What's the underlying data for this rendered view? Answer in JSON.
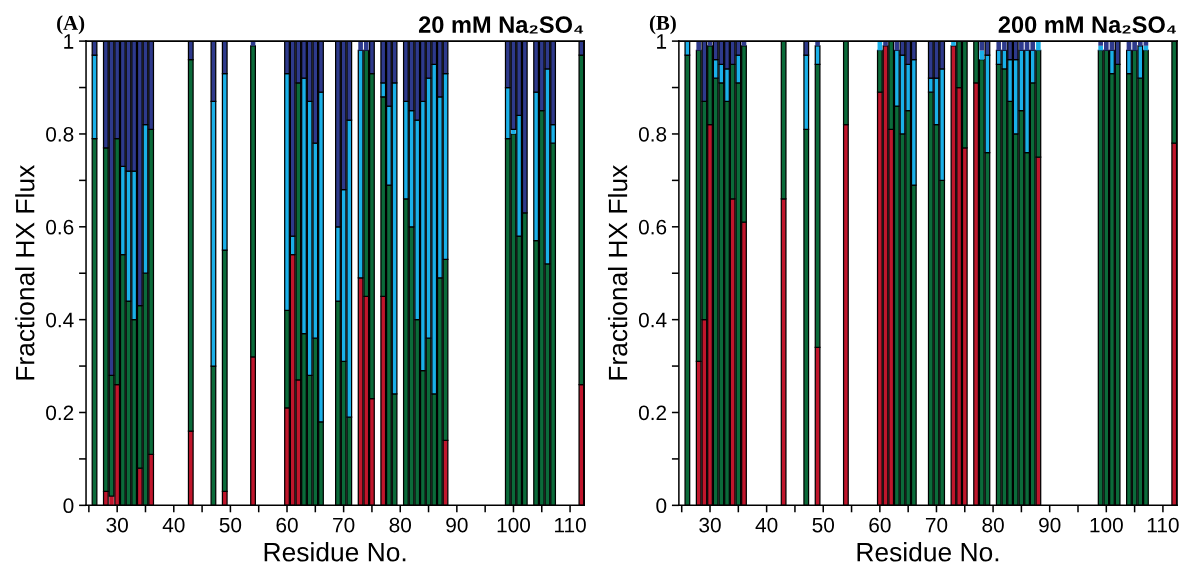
{
  "chart_data": [
    {
      "type": "bar",
      "stacked": true,
      "title": "20 mM Na₂SO₄",
      "annotations": [
        "(A)"
      ],
      "xlabel": "Residue No.",
      "ylabel": "Fractional HX Flux",
      "x": [
        26,
        28,
        29,
        30,
        31,
        32,
        33,
        34,
        35,
        36,
        43,
        47,
        49,
        54,
        60,
        61,
        62,
        63,
        64,
        65,
        66,
        69,
        70,
        71,
        73,
        74,
        75,
        77,
        78,
        79,
        81,
        82,
        83,
        84,
        85,
        86,
        87,
        88,
        99,
        100,
        101,
        102,
        104,
        105,
        106,
        107,
        112
      ],
      "series": [
        {
          "color": "#c0162c",
          "values": [
            0,
            0.03,
            0.02,
            0.26,
            0,
            0,
            0,
            0.08,
            0,
            0.11,
            0.16,
            0,
            0.03,
            0.32,
            0.21,
            0.54,
            0.27,
            0,
            0,
            0,
            0,
            0,
            0,
            0,
            0.49,
            0.45,
            0.23,
            0.45,
            0,
            0,
            0,
            0,
            0,
            0,
            0,
            0,
            0,
            0.14,
            0,
            0,
            0,
            0,
            0,
            0,
            0,
            0,
            0.26
          ]
        },
        {
          "color": "#0b6b3a",
          "values": [
            0.79,
            0.74,
            0.26,
            0.53,
            0.54,
            0.44,
            0.4,
            0.35,
            0.5,
            0.7,
            0.8,
            0.3,
            0.52,
            0.67,
            0.21,
            0,
            0.64,
            0.37,
            0.28,
            0.36,
            0.18,
            0.44,
            0.31,
            0.19,
            0,
            0.53,
            0.7,
            0.43,
            0.69,
            0.24,
            0.66,
            0.6,
            0.4,
            0.29,
            0.36,
            0.24,
            0.49,
            0.39,
            0.79,
            0.8,
            0.58,
            0.63,
            0.57,
            0.85,
            0.52,
            0.78,
            0.71
          ]
        },
        {
          "color": "#1ab0e8",
          "values": [
            0.18,
            0,
            0,
            0,
            0.19,
            0.28,
            0.32,
            0,
            0.32,
            0,
            0,
            0.57,
            0.38,
            0,
            0.51,
            0.04,
            0,
            0.55,
            0.59,
            0.42,
            0.71,
            0.16,
            0.37,
            0.64,
            0.49,
            0,
            0,
            0.03,
            0.17,
            0.67,
            0.21,
            0.25,
            0.43,
            0.58,
            0.56,
            0.71,
            0.39,
            0.4,
            0.11,
            0.01,
            0.26,
            0,
            0.32,
            0,
            0.42,
            0.04,
            0
          ]
        },
        {
          "color": "#2e3a8c",
          "values": [
            0.03,
            0.23,
            0.72,
            0.21,
            0.27,
            0.28,
            0.28,
            0.57,
            0.18,
            0.19,
            0.04,
            0.13,
            0.07,
            0.01,
            0.07,
            0.42,
            0.09,
            0.08,
            0.13,
            0.22,
            0.11,
            0.4,
            0.32,
            0.17,
            0.02,
            0.02,
            0.07,
            0.09,
            0.14,
            0.09,
            0.13,
            0.15,
            0.17,
            0.13,
            0.08,
            0.05,
            0.12,
            0.07,
            0.1,
            0.19,
            0.16,
            0.37,
            0.11,
            0.15,
            0.06,
            0.18,
            0.03
          ]
        }
      ],
      "xlim": [
        24.5,
        112.5
      ],
      "xticks": [
        {
          "value": 25,
          "label": null
        },
        30,
        {
          "value": 35,
          "label": null
        },
        40,
        {
          "value": 45,
          "label": null
        },
        50,
        {
          "value": 55,
          "label": null
        },
        60,
        {
          "value": 65,
          "label": null
        },
        70,
        {
          "value": 75,
          "label": null
        },
        80,
        {
          "value": 85,
          "label": null
        },
        90,
        {
          "value": 95,
          "label": null
        },
        100,
        {
          "value": 105,
          "label": null
        },
        110
      ],
      "ylim": [
        0,
        1
      ],
      "yticks": [
        0,
        {
          "value": 0.1,
          "label": null
        },
        0.2,
        {
          "value": 0.3,
          "label": null
        },
        0.4,
        {
          "value": 0.5,
          "label": null
        },
        0.6,
        {
          "value": 0.7,
          "label": null
        },
        0.8,
        {
          "value": 0.9,
          "label": null
        },
        1
      ]
    },
    {
      "type": "bar",
      "stacked": true,
      "title": "200 mM Na₂SO₄",
      "annotations": [
        "(B)"
      ],
      "xlabel": "Residue No.",
      "ylabel": "Fractional HX Flux",
      "x": [
        26,
        28,
        29,
        30,
        31,
        32,
        33,
        34,
        35,
        36,
        43,
        47,
        49,
        54,
        60,
        61,
        62,
        63,
        64,
        65,
        66,
        69,
        70,
        71,
        73,
        74,
        75,
        77,
        78,
        79,
        81,
        82,
        83,
        84,
        85,
        86,
        87,
        88,
        99,
        100,
        101,
        102,
        104,
        105,
        106,
        107,
        112
      ],
      "series": [
        {
          "color": "#c0162c",
          "values": [
            0,
            0.31,
            0.4,
            0.82,
            0,
            0,
            0,
            0.66,
            0,
            0.61,
            0.66,
            0,
            0.34,
            0.82,
            0.89,
            0.99,
            0.81,
            0,
            0,
            0,
            0,
            0,
            0,
            0,
            0.99,
            0.9,
            0.77,
            0.91,
            0,
            0,
            0,
            0,
            0,
            0,
            0,
            0,
            0,
            0.75,
            0,
            0,
            0,
            0,
            0,
            0,
            0,
            0,
            0.78
          ]
        },
        {
          "color": "#0b6b3a",
          "values": [
            0.97,
            0.67,
            0.47,
            0.17,
            0.92,
            0.91,
            0.87,
            0.29,
            0.91,
            0.38,
            0.34,
            0.81,
            0.61,
            0.18,
            0.09,
            0,
            0.19,
            0.86,
            0.8,
            0.85,
            0.69,
            0.89,
            0.82,
            0.7,
            0,
            0.1,
            0.23,
            0.09,
            0.96,
            0.76,
            0.95,
            0.94,
            0.87,
            0.8,
            0.85,
            0.76,
            0.91,
            0.23,
            0.98,
            0.98,
            0.93,
            0.95,
            0.93,
            0.98,
            0.92,
            0.98,
            0.22
          ]
        },
        {
          "color": "#1ab0e8",
          "values": [
            0.03,
            0,
            0,
            0,
            0.04,
            0.04,
            0.07,
            0,
            0.06,
            0,
            0,
            0.16,
            0.04,
            0,
            0.02,
            0,
            0,
            0.12,
            0.17,
            0.1,
            0.27,
            0.03,
            0.1,
            0.24,
            0.01,
            0,
            0,
            0,
            0.02,
            0.21,
            0.03,
            0.04,
            0.09,
            0.16,
            0.13,
            0.22,
            0.07,
            0.02,
            0.01,
            0,
            0.05,
            0,
            0.05,
            0,
            0.07,
            0.01,
            0
          ]
        },
        {
          "color": "#2e3a8c",
          "values": [
            0,
            0.02,
            0.13,
            0.01,
            0.04,
            0.05,
            0.06,
            0.05,
            0.03,
            0.01,
            0,
            0.03,
            0.01,
            0,
            0,
            0.01,
            0,
            0.02,
            0.03,
            0.05,
            0.04,
            0.08,
            0.08,
            0.06,
            0,
            0,
            0,
            0,
            0.02,
            0.03,
            0.02,
            0.02,
            0.04,
            0.04,
            0.02,
            0.02,
            0.02,
            0,
            0.01,
            0.02,
            0.02,
            0.05,
            0.02,
            0.02,
            0.01,
            0.01,
            0
          ]
        }
      ],
      "xlim": [
        24.5,
        112.5
      ],
      "xticks": [
        {
          "value": 25,
          "label": null
        },
        30,
        {
          "value": 35,
          "label": null
        },
        40,
        {
          "value": 45,
          "label": null
        },
        50,
        {
          "value": 55,
          "label": null
        },
        60,
        {
          "value": 65,
          "label": null
        },
        70,
        {
          "value": 75,
          "label": null
        },
        80,
        {
          "value": 85,
          "label": null
        },
        90,
        {
          "value": 95,
          "label": null
        },
        100,
        {
          "value": 105,
          "label": null
        },
        110
      ],
      "ylim": [
        0,
        1
      ],
      "yticks": [
        0,
        {
          "value": 0.1,
          "label": null
        },
        0.2,
        {
          "value": 0.3,
          "label": null
        },
        0.4,
        {
          "value": 0.5,
          "label": null
        },
        0.6,
        {
          "value": 0.7,
          "label": null
        },
        0.8,
        {
          "value": 0.9,
          "label": null
        },
        1
      ]
    }
  ]
}
